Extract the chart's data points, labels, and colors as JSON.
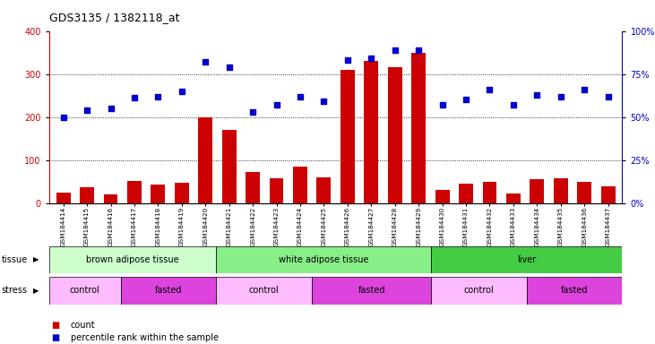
{
  "title": "GDS3135 / 1382118_at",
  "samples": [
    "GSM184414",
    "GSM184415",
    "GSM184416",
    "GSM184417",
    "GSM184418",
    "GSM184419",
    "GSM184420",
    "GSM184421",
    "GSM184422",
    "GSM184423",
    "GSM184424",
    "GSM184425",
    "GSM184426",
    "GSM184427",
    "GSM184428",
    "GSM184429",
    "GSM184430",
    "GSM184431",
    "GSM184432",
    "GSM184433",
    "GSM184434",
    "GSM184435",
    "GSM184436",
    "GSM184437"
  ],
  "count_values": [
    25,
    37,
    20,
    52,
    42,
    48,
    200,
    170,
    72,
    57,
    85,
    60,
    310,
    330,
    315,
    350,
    30,
    45,
    50,
    22,
    55,
    58,
    50,
    38
  ],
  "percentile_values": [
    50,
    54,
    55,
    61,
    62,
    65,
    82,
    79,
    53,
    57,
    62,
    59,
    83,
    84,
    89,
    89,
    57,
    60,
    66,
    57,
    63,
    62,
    66,
    62
  ],
  "bar_color": "#cc0000",
  "dot_color": "#0000cc",
  "ylim_left": [
    0,
    400
  ],
  "ylim_right": [
    0,
    100
  ],
  "yticks_left": [
    0,
    100,
    200,
    300,
    400
  ],
  "yticks_right": [
    0,
    25,
    50,
    75,
    100
  ],
  "yticklabels_right": [
    "0%",
    "25%",
    "50%",
    "75%",
    "100%"
  ],
  "tissue_groups": [
    {
      "label": "brown adipose tissue",
      "start": 0,
      "end": 6,
      "color": "#ccffcc"
    },
    {
      "label": "white adipose tissue",
      "start": 7,
      "end": 15,
      "color": "#88ee88"
    },
    {
      "label": "liver",
      "start": 16,
      "end": 23,
      "color": "#44cc44"
    }
  ],
  "stress_groups": [
    {
      "label": "control",
      "start": 0,
      "end": 2,
      "color": "#ffbbff"
    },
    {
      "label": "fasted",
      "start": 3,
      "end": 6,
      "color": "#dd44dd"
    },
    {
      "label": "control",
      "start": 7,
      "end": 10,
      "color": "#ffbbff"
    },
    {
      "label": "fasted",
      "start": 11,
      "end": 15,
      "color": "#dd44dd"
    },
    {
      "label": "control",
      "start": 16,
      "end": 19,
      "color": "#ffbbff"
    },
    {
      "label": "fasted",
      "start": 20,
      "end": 23,
      "color": "#dd44dd"
    }
  ],
  "legend_count_color": "#cc0000",
  "legend_dot_color": "#0000cc"
}
